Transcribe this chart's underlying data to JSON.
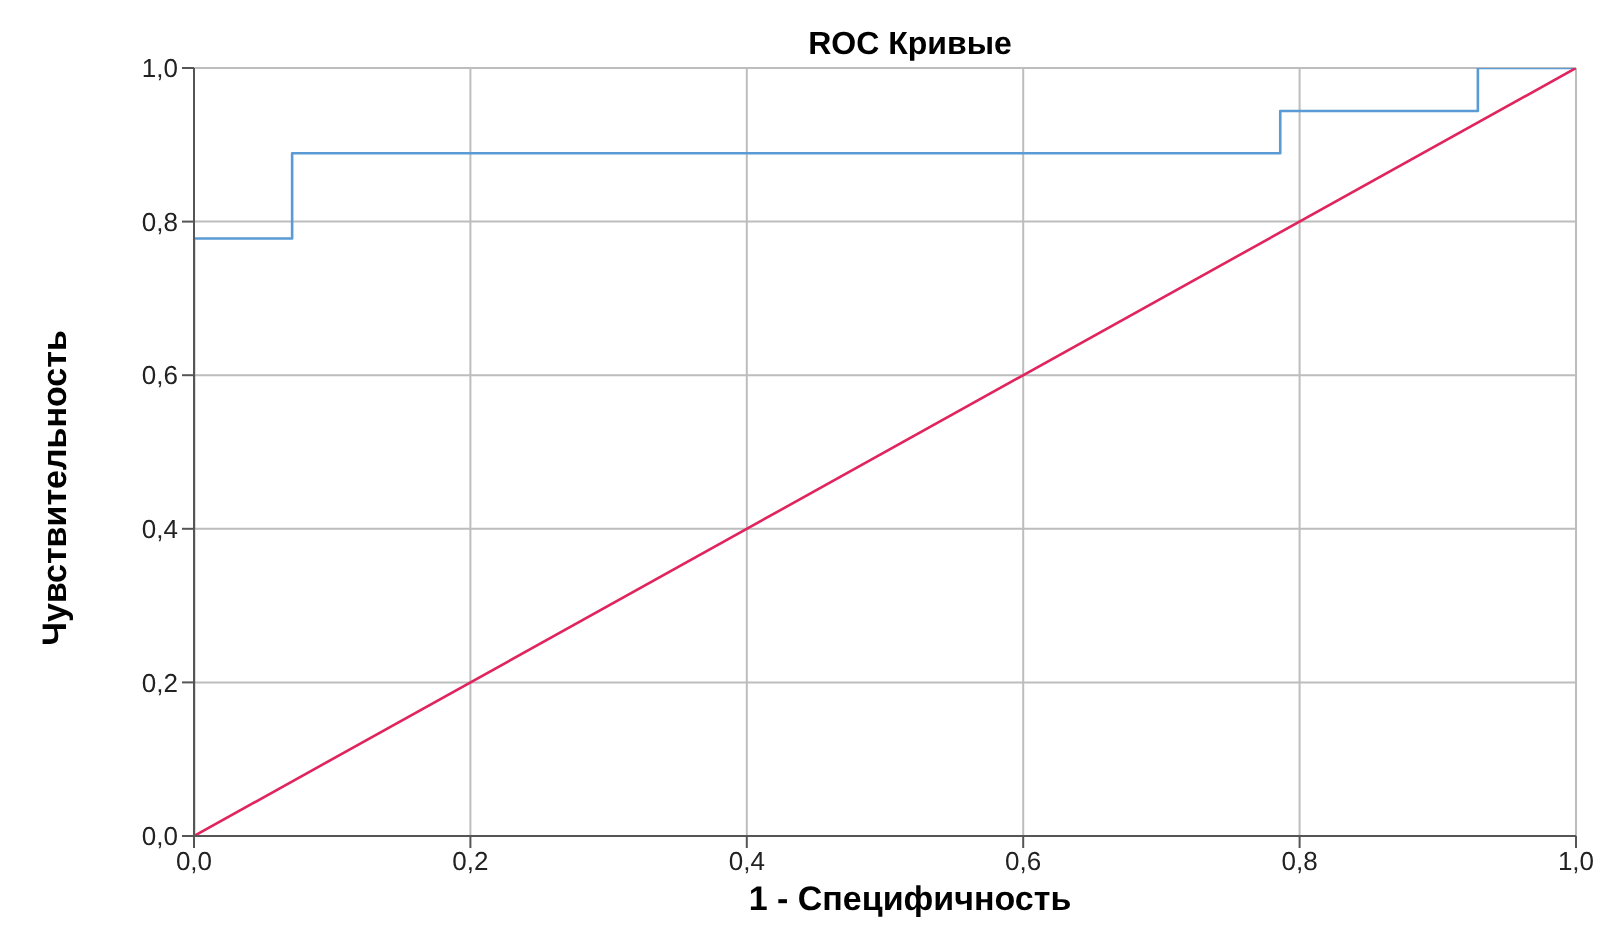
{
  "chart_data": {
    "type": "step",
    "title": "ROC Кривые",
    "xlabel": "1 - Специфичность",
    "ylabel": "Чувствительность",
    "series": [
      {
        "color": "#5b9bd5",
        "x": [
          0,
          0,
          0.071,
          0.786,
          0.929,
          1
        ],
        "values": [
          0,
          0.778,
          0.889,
          0.944,
          1,
          1
        ]
      },
      {
        "type": "line",
        "color": "#e0245e",
        "x": [
          0,
          1
        ],
        "values": [
          0,
          1
        ]
      }
    ],
    "xlim": [
      0,
      1
    ],
    "ylim": [
      0,
      1
    ],
    "xticks": [
      {
        "value": 0,
        "label": "0,0"
      },
      {
        "value": 0.2,
        "label": "0,2"
      },
      {
        "value": 0.4,
        "label": "0,4"
      },
      {
        "value": 0.6,
        "label": "0,6"
      },
      {
        "value": 0.8,
        "label": "0,8"
      },
      {
        "value": 1,
        "label": "1,0"
      }
    ],
    "yticks": [
      {
        "value": 0,
        "label": "0,0"
      },
      {
        "value": 0.2,
        "label": "0,2"
      },
      {
        "value": 0.4,
        "label": "0,4"
      },
      {
        "value": 0.6,
        "label": "0,6"
      },
      {
        "value": 0.8,
        "label": "0,8"
      },
      {
        "value": 1,
        "label": "1,0"
      }
    ],
    "grid": true,
    "legend": false
  }
}
